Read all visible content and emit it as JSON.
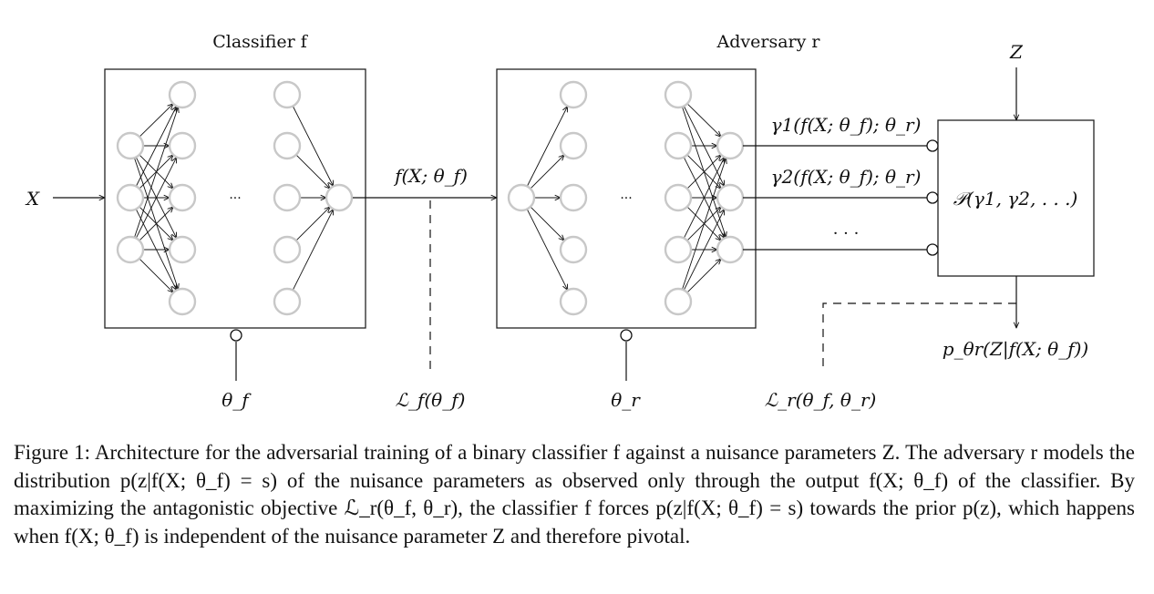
{
  "diagram": {
    "classifier_title": "Classifier f",
    "adversary_title": "Adversary r",
    "input_label": "X",
    "nuisance_label": "Z",
    "ellipsis": "···",
    "output_label": "f(X; θ_f)",
    "gamma1_label": "γ1(f(X; θ_f); θ_r)",
    "gamma2_label": "γ2(f(X; θ_f); θ_r)",
    "gamma_dots": "· · ·",
    "prior_box_label": "𝒫(γ1, γ2, . . .)",
    "posterior_label": "p_θr(Z|f(X; θ_f))",
    "theta_f_label": "θ_f",
    "loss_f_label": "ℒ_f(θ_f)",
    "theta_r_label": "θ_r",
    "loss_r_label": "ℒ_r(θ_f, θ_r)"
  },
  "caption": "Figure 1: Architecture for the adversarial training of a binary classifier f against a nuisance parameters Z. The adversary r models the distribution p(z|f(X; θ_f) = s) of the nuisance parameters as observed only through the output f(X; θ_f) of the classifier. By maximizing the antagonistic objective ℒ_r(θ_f, θ_r), the classifier f forces p(z|f(X; θ_f) = s) towards the prior p(z), which happens when f(X; θ_f) is independent of the nuisance parameter Z and therefore pivotal."
}
